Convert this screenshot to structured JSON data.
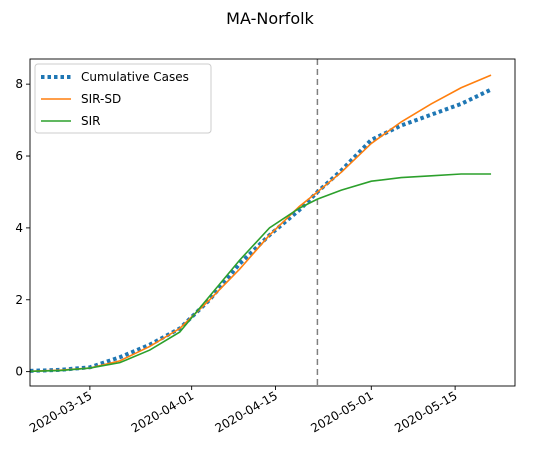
{
  "chart_data": {
    "type": "line",
    "title": "MA-Norfolk",
    "xlabel": "",
    "ylabel": "",
    "x_ticks": [
      "2020-03-15",
      "2020-04-01",
      "2020-04-15",
      "2020-05-01",
      "2020-05-15"
    ],
    "y_ticks": [
      0,
      2,
      4,
      6,
      8
    ],
    "xlim": [
      "2020-03-05",
      "2020-05-25"
    ],
    "ylim": [
      -0.4,
      8.7
    ],
    "vline_date": "2020-04-22",
    "legend_position": "upper-left",
    "grid": false,
    "series": [
      {
        "name": "Cumulative Cases",
        "color": "#1f77b4",
        "style": "dotted",
        "points": [
          [
            "2020-03-05",
            0.02
          ],
          [
            "2020-03-10",
            0.05
          ],
          [
            "2020-03-15",
            0.12
          ],
          [
            "2020-03-20",
            0.4
          ],
          [
            "2020-03-25",
            0.75
          ],
          [
            "2020-03-30",
            1.2
          ],
          [
            "2020-04-04",
            2.0
          ],
          [
            "2020-04-09",
            3.0
          ],
          [
            "2020-04-14",
            3.8
          ],
          [
            "2020-04-19",
            4.5
          ],
          [
            "2020-04-22",
            5.0
          ],
          [
            "2020-04-26",
            5.6
          ],
          [
            "2020-05-01",
            6.45
          ],
          [
            "2020-05-06",
            6.85
          ],
          [
            "2020-05-11",
            7.15
          ],
          [
            "2020-05-16",
            7.45
          ],
          [
            "2020-05-21",
            7.85
          ]
        ]
      },
      {
        "name": "SIR-SD",
        "color": "#ff7f0e",
        "style": "solid",
        "points": [
          [
            "2020-03-05",
            0.01
          ],
          [
            "2020-03-10",
            0.04
          ],
          [
            "2020-03-15",
            0.1
          ],
          [
            "2020-03-20",
            0.3
          ],
          [
            "2020-03-25",
            0.7
          ],
          [
            "2020-03-30",
            1.2
          ],
          [
            "2020-04-04",
            2.0
          ],
          [
            "2020-04-09",
            2.85
          ],
          [
            "2020-04-14",
            3.8
          ],
          [
            "2020-04-19",
            4.6
          ],
          [
            "2020-04-22",
            5.0
          ],
          [
            "2020-04-26",
            5.55
          ],
          [
            "2020-05-01",
            6.35
          ],
          [
            "2020-05-06",
            6.95
          ],
          [
            "2020-05-11",
            7.45
          ],
          [
            "2020-05-16",
            7.9
          ],
          [
            "2020-05-21",
            8.25
          ]
        ]
      },
      {
        "name": "SIR",
        "color": "#2ca02c",
        "style": "solid",
        "points": [
          [
            "2020-03-05",
            0.01
          ],
          [
            "2020-03-10",
            0.03
          ],
          [
            "2020-03-15",
            0.1
          ],
          [
            "2020-03-20",
            0.25
          ],
          [
            "2020-03-25",
            0.6
          ],
          [
            "2020-03-30",
            1.1
          ],
          [
            "2020-04-04",
            2.1
          ],
          [
            "2020-04-09",
            3.1
          ],
          [
            "2020-04-14",
            4.0
          ],
          [
            "2020-04-19",
            4.55
          ],
          [
            "2020-04-22",
            4.8
          ],
          [
            "2020-04-26",
            5.05
          ],
          [
            "2020-05-01",
            5.3
          ],
          [
            "2020-05-06",
            5.4
          ],
          [
            "2020-05-11",
            5.45
          ],
          [
            "2020-05-16",
            5.5
          ],
          [
            "2020-05-21",
            5.5
          ]
        ]
      }
    ]
  }
}
